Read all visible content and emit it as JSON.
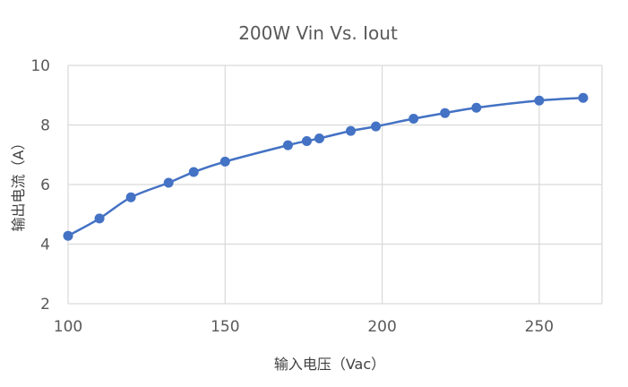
{
  "chart_data": {
    "type": "scatter",
    "title": "200W Vin Vs. Iout",
    "xlabel": "输入电压（Vac）",
    "ylabel": "输出电流（A）",
    "xlim": [
      100,
      270
    ],
    "ylim": [
      2,
      10
    ],
    "xticks": [
      "100",
      "150",
      "200",
      "250"
    ],
    "yticks": [
      "2",
      "4",
      "6",
      "8",
      "10"
    ],
    "grid": true,
    "legend": "none",
    "smooth_line": true,
    "series": [
      {
        "color": "#4472C4",
        "x": [
          100,
          110,
          120,
          132,
          140,
          150,
          170,
          176,
          180,
          190,
          198,
          210,
          220,
          230,
          250,
          264
        ],
        "y": [
          4.28,
          4.86,
          5.57,
          6.06,
          6.42,
          6.77,
          7.32,
          7.46,
          7.55,
          7.8,
          7.95,
          8.21,
          8.4,
          8.58,
          8.82,
          8.91
        ]
      }
    ]
  }
}
